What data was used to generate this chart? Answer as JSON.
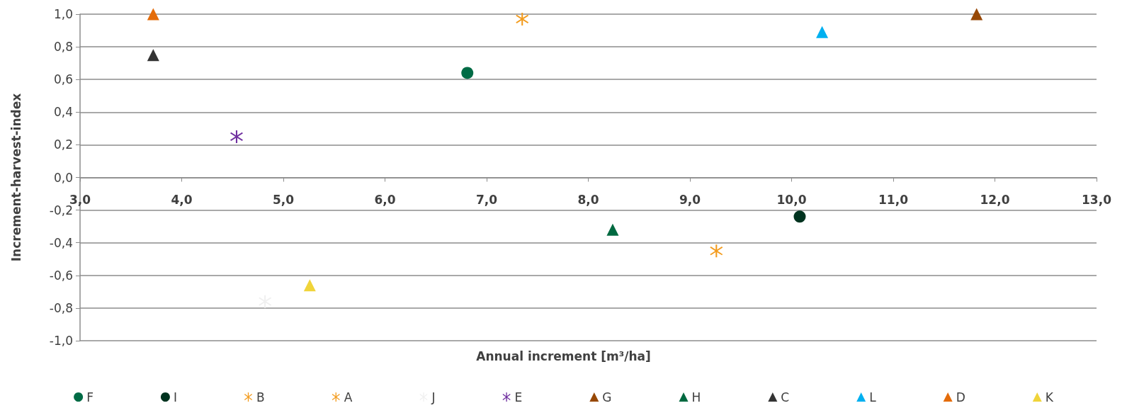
{
  "chart_data": {
    "type": "scatter",
    "xlabel": "Annual increment [m³/ha]",
    "ylabel": "Increment-harvest-index",
    "xlim": [
      3,
      13
    ],
    "xticks": [
      {
        "value": 3,
        "label": "3,0"
      },
      {
        "value": 4,
        "label": "4,0"
      },
      {
        "value": 5,
        "label": "5,0"
      },
      {
        "value": 6,
        "label": "6,0"
      },
      {
        "value": 7,
        "label": "7,0"
      },
      {
        "value": 8,
        "label": "8,0"
      },
      {
        "value": 9,
        "label": "9,0"
      },
      {
        "value": 10,
        "label": "10,0"
      },
      {
        "value": 11,
        "label": "11,0"
      },
      {
        "value": 12,
        "label": "12,0"
      },
      {
        "value": 13,
        "label": "13,0"
      }
    ],
    "ylim": [
      -1,
      1
    ],
    "yticks": [
      {
        "value": -1,
        "label": "-1,0"
      },
      {
        "value": -0.8,
        "label": "-0,8"
      },
      {
        "value": -0.6,
        "label": "-0,6"
      },
      {
        "value": -0.4,
        "label": "-0,4"
      },
      {
        "value": -0.2,
        "label": "-0,2"
      },
      {
        "value": 0,
        "label": "0,0"
      },
      {
        "value": 0.2,
        "label": "0,2"
      },
      {
        "value": 0.4,
        "label": "0,4"
      },
      {
        "value": 0.6,
        "label": "0,6"
      },
      {
        "value": 0.8,
        "label": "0,8"
      },
      {
        "value": 1,
        "label": "1,0"
      }
    ],
    "grid": "y",
    "legend": "bottom",
    "series": [
      {
        "name": "F",
        "color": "#006b45",
        "marker": "circle",
        "x": [
          6.81
        ],
        "values": [
          0.64
        ]
      },
      {
        "name": "I",
        "color": "#00331f",
        "marker": "circle",
        "x": [
          10.08
        ],
        "values": [
          -0.24
        ]
      },
      {
        "name": "B",
        "color": "#f39c1f",
        "marker": "cross",
        "x": [
          9.26
        ],
        "values": [
          -0.45
        ]
      },
      {
        "name": "A",
        "color": "#f39c1f",
        "marker": "cross",
        "x": [
          7.35
        ],
        "values": [
          0.97
        ]
      },
      {
        "name": "J",
        "color": "#f0f0f0",
        "marker": "cross",
        "x": [
          4.82
        ],
        "values": [
          -0.76
        ]
      },
      {
        "name": "E",
        "color": "#7030a0",
        "marker": "cross",
        "x": [
          4.54
        ],
        "values": [
          0.25
        ]
      },
      {
        "name": "G",
        "color": "#974806",
        "marker": "triangle",
        "x": [
          11.82
        ],
        "values": [
          1.0
        ]
      },
      {
        "name": "H",
        "color": "#006940",
        "marker": "triangle",
        "x": [
          8.24
        ],
        "values": [
          -0.32
        ]
      },
      {
        "name": "C",
        "color": "#333333",
        "marker": "triangle",
        "x": [
          3.72
        ],
        "values": [
          0.75
        ]
      },
      {
        "name": "L",
        "color": "#00b0f0",
        "marker": "triangle",
        "x": [
          10.3
        ],
        "values": [
          0.89
        ]
      },
      {
        "name": "D",
        "color": "#e46c0a",
        "marker": "triangle",
        "x": [
          3.72
        ],
        "values": [
          1.0
        ]
      },
      {
        "name": "K",
        "color": "#f0d43a",
        "marker": "triangle",
        "x": [
          5.26
        ],
        "values": [
          -0.66
        ]
      }
    ]
  }
}
